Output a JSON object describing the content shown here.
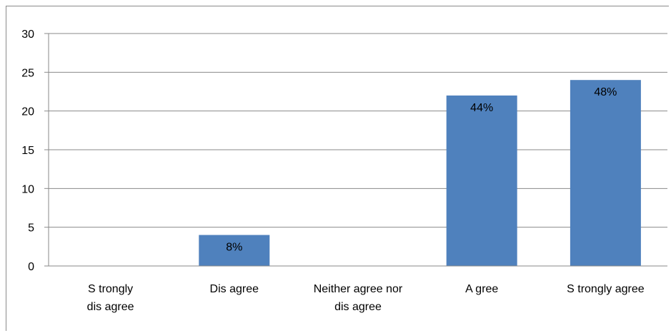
{
  "chart_data": {
    "type": "bar",
    "title": "",
    "xlabel": "",
    "ylabel": "",
    "categories": [
      [
        "S trongly",
        "dis agree"
      ],
      [
        "Dis agree"
      ],
      [
        "Neither agree nor",
        "dis agree"
      ],
      [
        "A gree"
      ],
      [
        "S trongly agree"
      ]
    ],
    "values": [
      0,
      4,
      0,
      22,
      24
    ],
    "data_labels": [
      "",
      "8%",
      "",
      "44%",
      "48%"
    ],
    "ylim": [
      0,
      30
    ],
    "yticks": [
      0,
      5,
      10,
      15,
      20,
      25,
      30
    ],
    "grid": true,
    "legend": "none",
    "colors": {
      "bar": "#4f81bd",
      "grid": "#8a8a8a",
      "axis": "#8a8a8a"
    }
  }
}
